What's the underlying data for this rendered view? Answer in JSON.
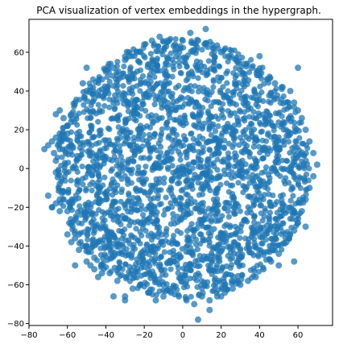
{
  "chart_data": {
    "type": "scatter",
    "title": "PCA visualization of vertex embeddings in the hypergraph.",
    "xlabel": "",
    "ylabel": "",
    "xlim": [
      -80,
      78
    ],
    "ylim": [
      -81,
      77
    ],
    "xticks": [
      -80,
      -60,
      -40,
      -20,
      0,
      20,
      40,
      60
    ],
    "yticks": [
      -80,
      -60,
      -40,
      -20,
      0,
      20,
      40,
      60
    ],
    "grid": false,
    "legend": "none",
    "point_color": "#1f77b4",
    "point_alpha": 0.75,
    "series": [
      {
        "values_description_free": true,
        "points": [
          [
            -70,
            12
          ],
          [
            -68,
            14
          ],
          [
            -66,
            16
          ],
          [
            -72,
            10
          ],
          [
            -67,
            8
          ],
          [
            -65,
            12
          ],
          [
            -64,
            18
          ],
          [
            -63,
            14
          ],
          [
            -66,
            -18
          ],
          [
            -68,
            -20
          ],
          [
            -64,
            -16
          ],
          [
            -70,
            -14
          ],
          [
            -62,
            -12
          ],
          [
            -64,
            -22
          ],
          [
            -66,
            28
          ],
          [
            -64,
            30
          ],
          [
            -62,
            26
          ],
          [
            -60,
            22
          ],
          [
            -58,
            24
          ],
          [
            -60,
            18
          ],
          [
            -58,
            -38
          ],
          [
            -60,
            -34
          ],
          [
            -56,
            -36
          ],
          [
            -54,
            -42
          ],
          [
            -52,
            -40
          ],
          [
            -50,
            -48
          ],
          [
            -48,
            -50
          ],
          [
            -46,
            -52
          ],
          [
            -44,
            -56
          ],
          [
            -42,
            -54
          ],
          [
            -52,
            44
          ],
          [
            -50,
            40
          ],
          [
            -48,
            42
          ],
          [
            -46,
            36
          ],
          [
            -44,
            38
          ],
          [
            -42,
            46
          ],
          [
            -40,
            50
          ],
          [
            -36,
            52
          ],
          [
            -34,
            48
          ],
          [
            -30,
            56
          ],
          [
            -28,
            58
          ],
          [
            -24,
            60
          ],
          [
            -20,
            64
          ],
          [
            -16,
            66
          ],
          [
            -12,
            68
          ],
          [
            -8,
            66
          ],
          [
            -4,
            64
          ],
          [
            0,
            66
          ],
          [
            4,
            70
          ],
          [
            8,
            66
          ],
          [
            12,
            64
          ],
          [
            16,
            62
          ],
          [
            20,
            60
          ],
          [
            24,
            58
          ],
          [
            28,
            56
          ],
          [
            32,
            54
          ],
          [
            36,
            52
          ],
          [
            40,
            50
          ],
          [
            44,
            46
          ],
          [
            48,
            44
          ],
          [
            52,
            42
          ],
          [
            56,
            40
          ],
          [
            58,
            34
          ],
          [
            60,
            30
          ],
          [
            62,
            26
          ],
          [
            64,
            20
          ],
          [
            66,
            14
          ],
          [
            68,
            8
          ],
          [
            70,
            2
          ],
          [
            68,
            -4
          ],
          [
            66,
            -10
          ],
          [
            64,
            -16
          ],
          [
            62,
            -22
          ],
          [
            60,
            -28
          ],
          [
            58,
            -32
          ],
          [
            54,
            -38
          ],
          [
            50,
            -44
          ],
          [
            46,
            -48
          ],
          [
            42,
            -52
          ],
          [
            38,
            -56
          ],
          [
            34,
            -58
          ],
          [
            30,
            -60
          ],
          [
            26,
            -62
          ],
          [
            22,
            -64
          ],
          [
            18,
            -66
          ],
          [
            14,
            -68
          ],
          [
            10,
            -66
          ],
          [
            6,
            -70
          ],
          [
            2,
            -68
          ],
          [
            -2,
            -66
          ],
          [
            -6,
            -64
          ],
          [
            -10,
            -66
          ],
          [
            -14,
            -68
          ],
          [
            -18,
            -64
          ],
          [
            -22,
            -60
          ],
          [
            -26,
            -62
          ],
          [
            -30,
            -66
          ],
          [
            -34,
            -58
          ],
          [
            -38,
            -54
          ],
          [
            -42,
            -50
          ],
          [
            -46,
            -46
          ],
          [
            -50,
            -40
          ],
          [
            -54,
            -34
          ],
          [
            -58,
            -28
          ],
          [
            -60,
            -22
          ],
          [
            -62,
            -16
          ],
          [
            -64,
            -8
          ],
          [
            -66,
            -2
          ],
          [
            -66,
            4
          ],
          [
            -64,
            10
          ],
          [
            -62,
            16
          ],
          [
            -60,
            22
          ],
          [
            -58,
            28
          ],
          [
            -56,
            34
          ],
          [
            14,
            -73
          ],
          [
            8,
            -78
          ],
          [
            -36,
            -66
          ],
          [
            12,
            72
          ],
          [
            -10,
            -60
          ],
          [
            20,
            -66
          ],
          [
            -50,
            52
          ],
          [
            50,
            -50
          ],
          [
            -30,
            -68
          ],
          [
            58,
            -48
          ],
          [
            -68,
            -20
          ],
          [
            60,
            52
          ],
          [
            40,
            58
          ],
          [
            -56,
            -50
          ],
          [
            64,
            -30
          ]
        ]
      }
    ]
  }
}
